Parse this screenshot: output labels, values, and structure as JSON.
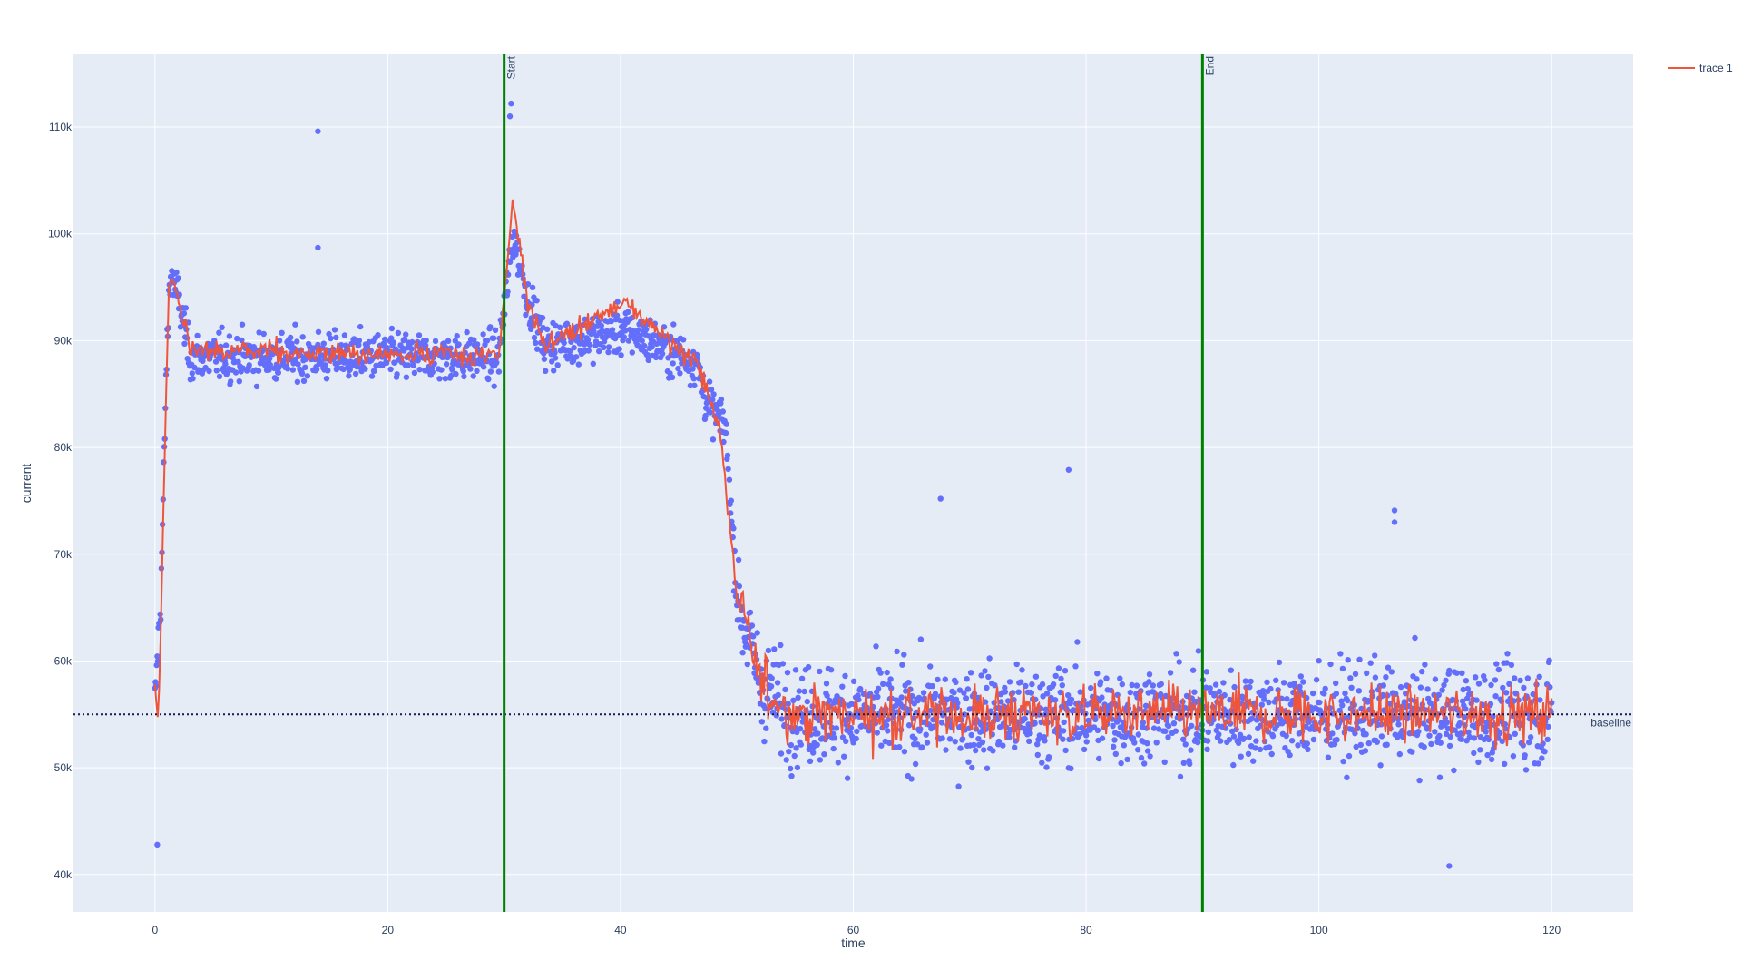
{
  "chart_data": {
    "type": "scatter",
    "title": "",
    "xlabel": "time",
    "ylabel": "current",
    "xlim": [
      -7,
      127
    ],
    "ylim": [
      36500,
      116800
    ],
    "x_ticks": [
      0,
      20,
      40,
      60,
      80,
      100,
      120
    ],
    "x_tick_labels": [
      "0",
      "20",
      "40",
      "60",
      "80",
      "100",
      "120"
    ],
    "y_ticks": [
      40000,
      50000,
      60000,
      70000,
      80000,
      90000,
      100000,
      110000
    ],
    "y_tick_labels": [
      "40k",
      "50k",
      "60k",
      "70k",
      "80k",
      "90k",
      "100k",
      "110k"
    ],
    "grid": true,
    "legend_position": "top-right",
    "plot_bgcolor": "#e5ecf6",
    "grid_color": "#ffffff",
    "series": [
      {
        "name": "",
        "mode": "markers",
        "color": "#636efa",
        "points_described": "about 2400 points, one every ~0.05 time units from 0 to 120",
        "profile": [
          {
            "x": 0.0,
            "y": 56000
          },
          {
            "x": 0.5,
            "y": 66000
          },
          {
            "x": 1.0,
            "y": 88000
          },
          {
            "x": 1.3,
            "y": 96500
          },
          {
            "x": 2.0,
            "y": 94000
          },
          {
            "x": 3.0,
            "y": 88500
          },
          {
            "x": 10.0,
            "y": 88500
          },
          {
            "x": 29.5,
            "y": 88500
          },
          {
            "x": 30.8,
            "y": 100000
          },
          {
            "x": 32.0,
            "y": 94000
          },
          {
            "x": 33.5,
            "y": 89500
          },
          {
            "x": 40.5,
            "y": 91000
          },
          {
            "x": 46.5,
            "y": 88000
          },
          {
            "x": 47.5,
            "y": 84000
          },
          {
            "x": 49.0,
            "y": 82000
          },
          {
            "x": 50.0,
            "y": 66000
          },
          {
            "x": 52.0,
            "y": 58000
          },
          {
            "x": 55.0,
            "y": 55000
          },
          {
            "x": 120.0,
            "y": 55000
          }
        ],
        "outliers": [
          {
            "x": 14.0,
            "y": 109600
          },
          {
            "x": 14.0,
            "y": 98700
          },
          {
            "x": 30.5,
            "y": 111000
          },
          {
            "x": 30.6,
            "y": 112200
          },
          {
            "x": 0.2,
            "y": 42800
          },
          {
            "x": 78.5,
            "y": 77900
          },
          {
            "x": 106.5,
            "y": 74100
          },
          {
            "x": 106.5,
            "y": 73000
          },
          {
            "x": 111.2,
            "y": 40800
          },
          {
            "x": 67.5,
            "y": 75200
          }
        ]
      },
      {
        "name": "trace 1",
        "mode": "lines",
        "color": "#ef553b",
        "profile": [
          {
            "x": 0.0,
            "y": 58700
          },
          {
            "x": 0.3,
            "y": 54000
          },
          {
            "x": 1.2,
            "y": 96000
          },
          {
            "x": 2.0,
            "y": 94000
          },
          {
            "x": 3.0,
            "y": 89000
          },
          {
            "x": 29.5,
            "y": 88500
          },
          {
            "x": 30.8,
            "y": 102800
          },
          {
            "x": 32.0,
            "y": 94000
          },
          {
            "x": 33.5,
            "y": 89500
          },
          {
            "x": 40.5,
            "y": 93500
          },
          {
            "x": 46.5,
            "y": 88000
          },
          {
            "x": 48.5,
            "y": 82000
          },
          {
            "x": 50.0,
            "y": 66000
          },
          {
            "x": 52.0,
            "y": 58000
          },
          {
            "x": 55.0,
            "y": 55000
          },
          {
            "x": 120.0,
            "y": 55000
          }
        ]
      }
    ],
    "vlines": [
      {
        "x": 30,
        "label": "Start",
        "color": "#008000"
      },
      {
        "x": 90,
        "label": "End",
        "color": "#008000"
      }
    ],
    "hlines": [
      {
        "y": 55000,
        "label": "baseline",
        "color": "#1a1a4e",
        "dash": "dot"
      }
    ]
  }
}
